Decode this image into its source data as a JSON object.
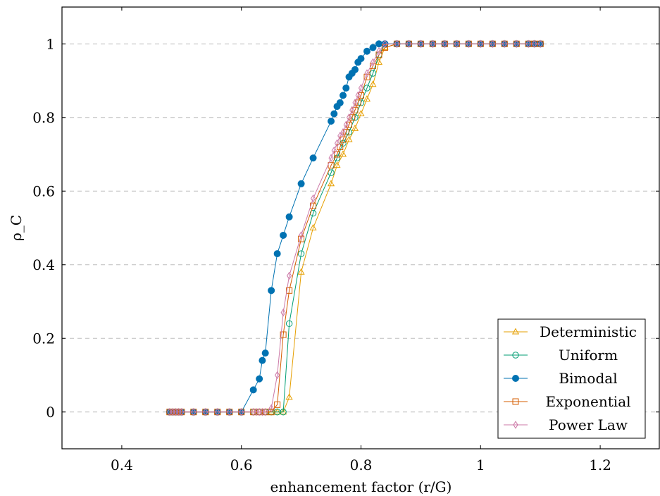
{
  "chart_data": {
    "type": "line",
    "title": "",
    "xlabel": "enhancement factor (r/G)",
    "ylabel": "ρ_C",
    "xlim": [
      0.3,
      1.3
    ],
    "ylim": [
      -0.1,
      1.1
    ],
    "xticks": [
      0.4,
      0.6,
      0.8,
      1.0,
      1.2
    ],
    "xtick_labels": [
      "0.4",
      "0.6",
      "0.8",
      "1",
      "1.2"
    ],
    "yticks": [
      0,
      0.2,
      0.4,
      0.6,
      0.8,
      1.0
    ],
    "ytick_labels": [
      "0",
      "0.2",
      "0.4",
      "0.6",
      "0.8",
      "1"
    ],
    "grid": "y-major-dashed",
    "legend_position": "bottom-right",
    "series": [
      {
        "name": "Deterministic",
        "color": "#e69f00",
        "marker": "triangle",
        "filled": false,
        "x": [
          0.48,
          0.485,
          0.49,
          0.495,
          0.5,
          0.52,
          0.54,
          0.56,
          0.58,
          0.6,
          0.62,
          0.63,
          0.64,
          0.65,
          0.66,
          0.67,
          0.68,
          0.7,
          0.72,
          0.75,
          0.76,
          0.77,
          0.78,
          0.79,
          0.8,
          0.81,
          0.82,
          0.83,
          0.84,
          0.86,
          0.88,
          0.9,
          0.92,
          0.94,
          0.96,
          0.98,
          1.0,
          1.02,
          1.04,
          1.06,
          1.08,
          1.09,
          1.1
        ],
        "y": [
          0,
          0,
          0,
          0,
          0,
          0,
          0,
          0,
          0,
          0,
          0,
          0,
          0,
          0,
          0,
          0,
          0.04,
          0.38,
          0.5,
          0.62,
          0.67,
          0.7,
          0.74,
          0.77,
          0.81,
          0.85,
          0.89,
          0.95,
          0.99,
          1,
          1,
          1,
          1,
          1,
          1,
          1,
          1,
          1,
          1,
          1,
          1,
          1,
          1
        ]
      },
      {
        "name": "Uniform",
        "color": "#009e73",
        "marker": "circle",
        "filled": false,
        "x": [
          0.48,
          0.485,
          0.49,
          0.495,
          0.5,
          0.52,
          0.54,
          0.56,
          0.58,
          0.6,
          0.62,
          0.63,
          0.64,
          0.65,
          0.66,
          0.67,
          0.68,
          0.7,
          0.72,
          0.75,
          0.76,
          0.77,
          0.78,
          0.79,
          0.8,
          0.81,
          0.82,
          0.83,
          0.84,
          0.86,
          0.88,
          0.9,
          0.92,
          0.94,
          0.96,
          0.98,
          1.0,
          1.02,
          1.04,
          1.06,
          1.08,
          1.09,
          1.1
        ],
        "y": [
          0,
          0,
          0,
          0,
          0,
          0,
          0,
          0,
          0,
          0,
          0,
          0,
          0,
          0,
          0,
          0,
          0.24,
          0.43,
          0.54,
          0.65,
          0.69,
          0.73,
          0.76,
          0.8,
          0.84,
          0.88,
          0.92,
          0.97,
          1,
          1,
          1,
          1,
          1,
          1,
          1,
          1,
          1,
          1,
          1,
          1,
          1,
          1,
          1
        ]
      },
      {
        "name": "Bimodal",
        "color": "#0072b2",
        "marker": "circle",
        "filled": true,
        "x": [
          0.48,
          0.485,
          0.49,
          0.495,
          0.5,
          0.52,
          0.54,
          0.56,
          0.58,
          0.6,
          0.62,
          0.63,
          0.635,
          0.64,
          0.65,
          0.66,
          0.67,
          0.68,
          0.7,
          0.72,
          0.75,
          0.755,
          0.76,
          0.765,
          0.77,
          0.775,
          0.78,
          0.785,
          0.79,
          0.795,
          0.8,
          0.81,
          0.82,
          0.83,
          0.84,
          0.86,
          0.88,
          0.9,
          0.92,
          0.94,
          0.96,
          0.98,
          1.0,
          1.02,
          1.04,
          1.06,
          1.08,
          1.09,
          1.1
        ],
        "y": [
          0,
          0,
          0,
          0,
          0,
          0,
          0,
          0,
          0,
          0,
          0.06,
          0.09,
          0.14,
          0.16,
          0.33,
          0.43,
          0.48,
          0.53,
          0.62,
          0.69,
          0.79,
          0.81,
          0.83,
          0.84,
          0.86,
          0.88,
          0.91,
          0.92,
          0.93,
          0.95,
          0.96,
          0.98,
          0.99,
          1,
          1,
          1,
          1,
          1,
          1,
          1,
          1,
          1,
          1,
          1,
          1,
          1,
          1,
          1,
          1
        ]
      },
      {
        "name": "Exponential",
        "color": "#d55e00",
        "marker": "square",
        "filled": false,
        "x": [
          0.48,
          0.485,
          0.49,
          0.495,
          0.5,
          0.52,
          0.54,
          0.56,
          0.58,
          0.6,
          0.62,
          0.63,
          0.64,
          0.65,
          0.66,
          0.67,
          0.68,
          0.7,
          0.72,
          0.75,
          0.76,
          0.765,
          0.77,
          0.775,
          0.78,
          0.785,
          0.79,
          0.795,
          0.8,
          0.81,
          0.82,
          0.83,
          0.84,
          0.86,
          0.88,
          0.9,
          0.92,
          0.94,
          0.96,
          0.98,
          1.0,
          1.02,
          1.04,
          1.06,
          1.08,
          1.09,
          1.1
        ],
        "y": [
          0,
          0,
          0,
          0,
          0,
          0,
          0,
          0,
          0,
          0,
          0,
          0,
          0,
          0,
          0.02,
          0.21,
          0.33,
          0.47,
          0.56,
          0.67,
          0.7,
          0.72,
          0.74,
          0.76,
          0.78,
          0.8,
          0.82,
          0.84,
          0.86,
          0.91,
          0.94,
          0.97,
          0.99,
          1,
          1,
          1,
          1,
          1,
          1,
          1,
          1,
          1,
          1,
          1,
          1,
          1,
          1
        ]
      },
      {
        "name": "Power Law",
        "color": "#cc79a7",
        "marker": "diamond",
        "filled": false,
        "x": [
          0.48,
          0.485,
          0.49,
          0.495,
          0.5,
          0.52,
          0.54,
          0.56,
          0.58,
          0.6,
          0.62,
          0.625,
          0.63,
          0.635,
          0.64,
          0.65,
          0.66,
          0.67,
          0.68,
          0.7,
          0.72,
          0.75,
          0.755,
          0.76,
          0.765,
          0.77,
          0.775,
          0.78,
          0.785,
          0.79,
          0.795,
          0.8,
          0.81,
          0.82,
          0.83,
          0.84,
          0.86,
          0.88,
          0.9,
          0.92,
          0.94,
          0.96,
          0.98,
          1.0,
          1.02,
          1.04,
          1.06,
          1.08,
          1.09,
          1.1
        ],
        "y": [
          0,
          0,
          0,
          0,
          0,
          0,
          0,
          0,
          0,
          0,
          0,
          0,
          0,
          0,
          0,
          0.01,
          0.1,
          0.27,
          0.37,
          0.48,
          0.58,
          0.69,
          0.71,
          0.73,
          0.75,
          0.76,
          0.78,
          0.8,
          0.82,
          0.84,
          0.86,
          0.88,
          0.92,
          0.95,
          0.98,
          1,
          1,
          1,
          1,
          1,
          1,
          1,
          1,
          1,
          1,
          1,
          1,
          1,
          1,
          1
        ]
      }
    ]
  }
}
